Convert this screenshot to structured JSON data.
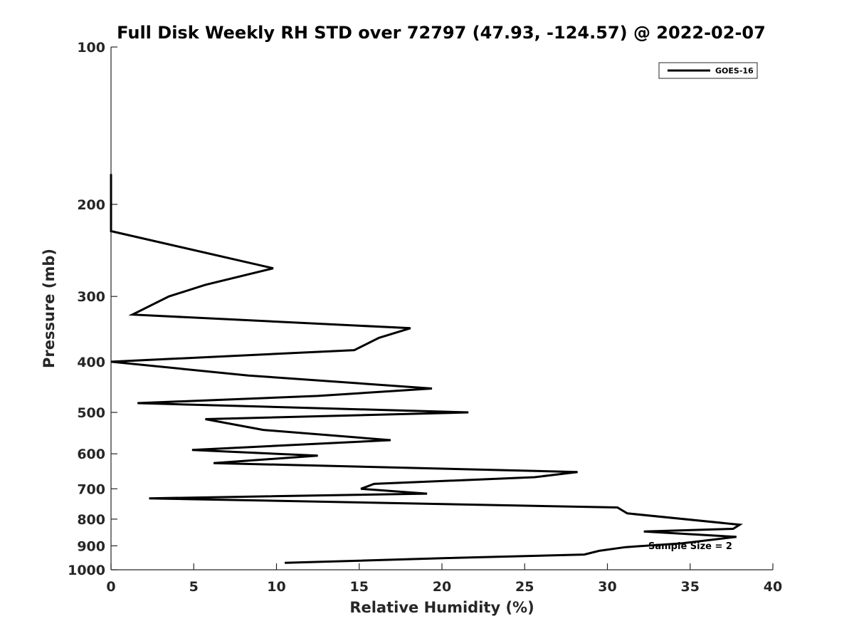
{
  "chart_data": {
    "type": "line",
    "title": "Full Disk Weekly RH STD over 72797 (47.93, -124.57) @ 2022-02-07",
    "xlabel": "Relative Humidity (%)",
    "ylabel": "Pressure (mb)",
    "xlim": [
      0,
      40
    ],
    "ylim": [
      100,
      1000
    ],
    "y_scale": "log",
    "y_reversed": true,
    "x_ticks": [
      0,
      5,
      10,
      15,
      20,
      25,
      30,
      35,
      40
    ],
    "x_tick_labels": [
      "0",
      "5",
      "10",
      "15",
      "20",
      "25",
      "30",
      "35",
      "40"
    ],
    "y_ticks": [
      100,
      200,
      300,
      400,
      500,
      600,
      700,
      800,
      900,
      1000
    ],
    "y_tick_labels": [
      "100",
      "200",
      "300",
      "400",
      "500",
      "600",
      "700",
      "800",
      "900",
      "1000"
    ],
    "grid": false,
    "legend_position": "top-right",
    "annotation": "Sample Size = 2",
    "line_color": "#000000",
    "series": [
      {
        "name": "GOES-16",
        "points": [
          [
            0.0,
            175
          ],
          [
            0.0,
            190
          ],
          [
            0.0,
            200
          ],
          [
            0.0,
            210
          ],
          [
            0.0,
            225
          ],
          [
            9.8,
            265
          ],
          [
            5.7,
            285
          ],
          [
            3.5,
            300
          ],
          [
            1.3,
            325
          ],
          [
            18.1,
            345
          ],
          [
            16.2,
            360
          ],
          [
            14.7,
            380
          ],
          [
            0.0,
            400
          ],
          [
            8.3,
            425
          ],
          [
            19.4,
            450
          ],
          [
            12.5,
            465
          ],
          [
            1.6,
            480
          ],
          [
            21.6,
            500
          ],
          [
            5.7,
            515
          ],
          [
            9.2,
            540
          ],
          [
            16.9,
            565
          ],
          [
            4.9,
            590
          ],
          [
            12.5,
            605
          ],
          [
            6.2,
            625
          ],
          [
            28.2,
            650
          ],
          [
            25.6,
            665
          ],
          [
            15.9,
            685
          ],
          [
            15.1,
            700
          ],
          [
            19.1,
            715
          ],
          [
            2.3,
            730
          ],
          [
            30.6,
            760
          ],
          [
            31.2,
            780
          ],
          [
            38.0,
            820
          ],
          [
            37.6,
            835
          ],
          [
            32.2,
            845
          ],
          [
            37.8,
            865
          ],
          [
            34.5,
            890
          ],
          [
            31.1,
            905
          ],
          [
            29.5,
            920
          ],
          [
            28.6,
            935
          ],
          [
            20.2,
            950
          ],
          [
            10.5,
            970
          ]
        ]
      }
    ]
  }
}
